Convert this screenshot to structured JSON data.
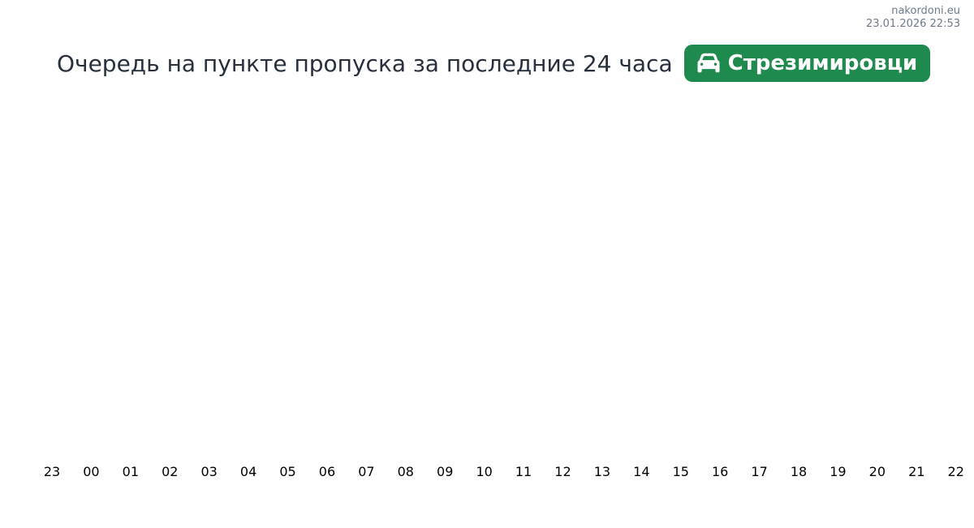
{
  "header": {
    "site": "nakordoni.eu",
    "timestamp": "23.01.2026 22:53"
  },
  "title": "Очередь на пункте пропуска за последние 24 часа",
  "badge": {
    "label": "Стрезимировци",
    "icon": "car-icon",
    "background_color": "#1e8a4e",
    "text_color": "#ffffff"
  },
  "chart_data": {
    "type": "line",
    "title": "Очередь на пункте пропуска за последние 24 часа",
    "categories": [
      "23",
      "00",
      "01",
      "02",
      "03",
      "04",
      "05",
      "06",
      "07",
      "08",
      "09",
      "10",
      "11",
      "12",
      "13",
      "14",
      "15",
      "16",
      "17",
      "18",
      "19",
      "20",
      "21",
      "22"
    ],
    "values": [],
    "xlabel": "",
    "ylabel": "",
    "legend": "none",
    "grid": false,
    "tick_label_color": "#000000"
  },
  "colors": {
    "background": "#ffffff",
    "muted_text": "#6e7b8a",
    "title_text": "#27303c",
    "accent_green": "#1e8a4e"
  }
}
